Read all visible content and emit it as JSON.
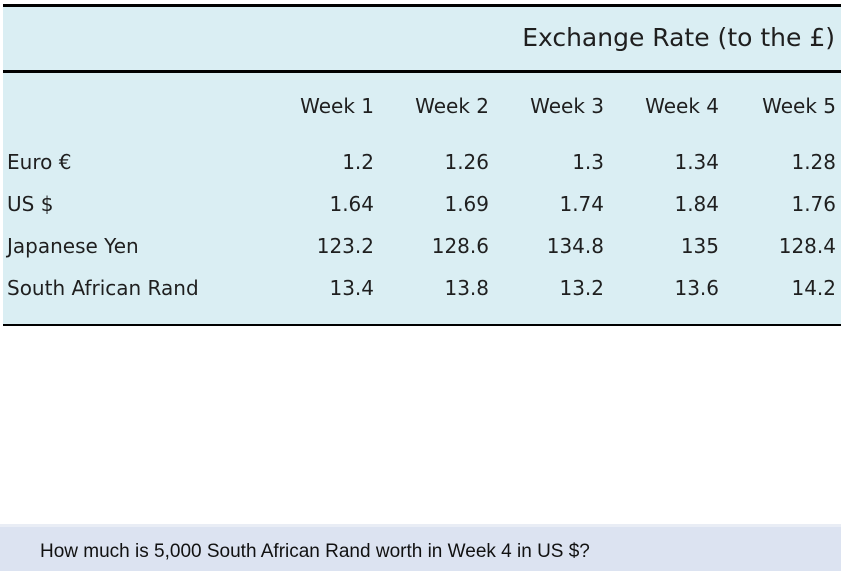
{
  "table": {
    "title": "Exchange Rate (to the £)",
    "columns": [
      "Week 1",
      "Week 2",
      "Week 3",
      "Week 4",
      "Week 5"
    ],
    "rows": [
      {
        "currency": "Euro €",
        "values": [
          "1.2",
          "1.26",
          "1.3",
          "1.34",
          "1.28"
        ]
      },
      {
        "currency": "US $",
        "values": [
          "1.64",
          "1.69",
          "1.74",
          "1.84",
          "1.76"
        ]
      },
      {
        "currency": "Japanese Yen",
        "values": [
          "123.2",
          "128.6",
          "134.8",
          "135",
          "128.4"
        ]
      },
      {
        "currency": "South African Rand",
        "values": [
          "13.4",
          "13.8",
          "13.2",
          "13.6",
          "14.2"
        ]
      }
    ]
  },
  "question": {
    "text": "How much is 5,000 South African Rand worth in Week 4 in US $?"
  },
  "colors": {
    "panel_background": "#daeef3",
    "question_background": "#dce3f1"
  }
}
